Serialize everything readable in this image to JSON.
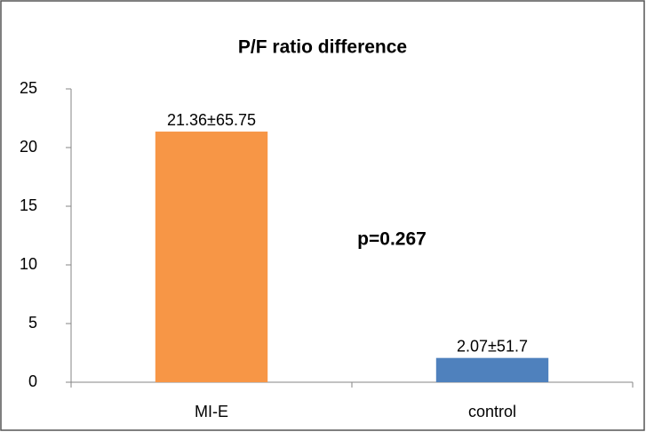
{
  "chart_data": {
    "type": "bar",
    "title": "P/F ratio difference",
    "categories": [
      "MI-E",
      "control"
    ],
    "values": [
      21.36,
      2.07
    ],
    "value_labels": [
      "21.36±65.75",
      "2.07±51.7"
    ],
    "colors": [
      "#f79646",
      "#4f81bd"
    ],
    "annotation": "p=0.267",
    "ylim": [
      0,
      25
    ],
    "yticks": [
      0,
      5,
      10,
      15,
      20,
      25
    ],
    "grid": false
  }
}
